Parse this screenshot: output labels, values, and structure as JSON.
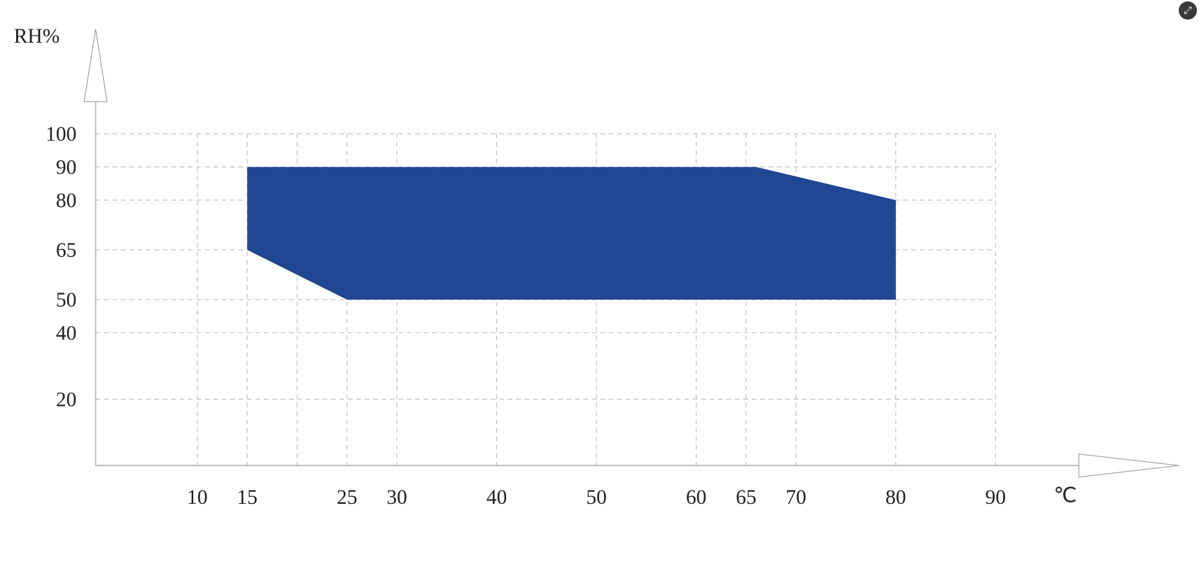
{
  "chart_data": {
    "type": "area",
    "title": "",
    "xlabel": "℃",
    "ylabel": "RH%",
    "xlim": [
      0,
      100
    ],
    "ylim": [
      0,
      100
    ],
    "grid": true,
    "x_ticks": [
      10,
      15,
      25,
      30,
      40,
      50,
      60,
      65,
      70,
      80,
      90
    ],
    "x_gridlines": [
      10,
      15,
      20,
      25,
      30,
      40,
      50,
      60,
      65,
      70,
      80,
      90
    ],
    "y_ticks": [
      20,
      40,
      50,
      65,
      80,
      90,
      100
    ],
    "region": {
      "color": "#214793",
      "points": [
        [
          15,
          90
        ],
        [
          66,
          90
        ],
        [
          80,
          80
        ],
        [
          80,
          50
        ],
        [
          25,
          50
        ],
        [
          15,
          65
        ]
      ]
    }
  },
  "controls": {
    "expand_icon": "expand-icon"
  }
}
